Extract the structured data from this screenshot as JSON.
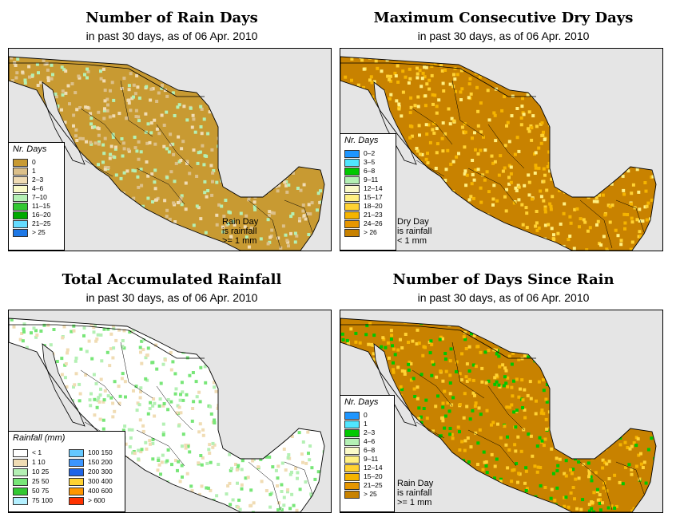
{
  "panels": [
    {
      "title": "Number of Rain Days",
      "subtitle": "in past 30 days, as of  06 Apr. 2010",
      "legend_title": "Nr. Days",
      "legend": [
        {
          "label": "0",
          "color": "#c89a32"
        },
        {
          "label": "1",
          "color": "#dcc08a"
        },
        {
          "label": "2–3",
          "color": "#f0dcb4"
        },
        {
          "label": "4–6",
          "color": "#fafac8"
        },
        {
          "label": "7–10",
          "color": "#b4f0b4"
        },
        {
          "label": "11–15",
          "color": "#32c832"
        },
        {
          "label": "16–20",
          "color": "#00aa00"
        },
        {
          "label": "21–25",
          "color": "#64dcff"
        },
        {
          "label": "> 25",
          "color": "#1e78e6"
        }
      ],
      "note": [
        "Rain Day",
        "is rainfall",
        ">= 1 mm"
      ],
      "land": "#c89a32",
      "spots": [
        "#dcc08a",
        "#f0dcb4",
        "#b4f0b4"
      ]
    },
    {
      "title": "Maximum Consecutive Dry Days",
      "subtitle": "in past 30 days, as of  06 Apr. 2010",
      "legend_title": "Nr. Days",
      "legend": [
        {
          "label": "0–2",
          "color": "#1e96ff"
        },
        {
          "label": "3–5",
          "color": "#50e6ff"
        },
        {
          "label": "6–8",
          "color": "#00c800"
        },
        {
          "label": "9–11",
          "color": "#b4f0b4"
        },
        {
          "label": "12–14",
          "color": "#fafac8"
        },
        {
          "label": "15–17",
          "color": "#fff082"
        },
        {
          "label": "18–20",
          "color": "#ffd232"
        },
        {
          "label": "21–23",
          "color": "#f5b400"
        },
        {
          "label": "24–26",
          "color": "#e69600"
        },
        {
          "label": "> 26",
          "color": "#c88200"
        }
      ],
      "note": [
        "Dry Day",
        "is rainfall",
        "< 1 mm"
      ],
      "land": "#c88200",
      "spots": [
        "#fff082",
        "#ffd232",
        "#f5b400"
      ]
    },
    {
      "title": "Total Accumulated Rainfall",
      "subtitle": "in past 30 days, as of  06 Apr. 2010",
      "legend_title": "Rainfall (mm)",
      "legend_left": [
        {
          "label": "< 1",
          "color": "#ffffff"
        },
        {
          "label": "1   10",
          "color": "#f0dcb4"
        },
        {
          "label": "10   25",
          "color": "#b4f0b4"
        },
        {
          "label": "25   50",
          "color": "#78e678"
        },
        {
          "label": "50   75",
          "color": "#32c832"
        },
        {
          "label": "75   100",
          "color": "#b4f0ff"
        }
      ],
      "legend_right": [
        {
          "label": "100  150",
          "color": "#64c8ff"
        },
        {
          "label": "150  200",
          "color": "#3c96ff"
        },
        {
          "label": "200  300",
          "color": "#1e64e6"
        },
        {
          "label": "300  400",
          "color": "#ffd232"
        },
        {
          "label": "400  600",
          "color": "#ff9600"
        },
        {
          "label": "> 600",
          "color": "#ff3200"
        }
      ],
      "land": "#ffffff",
      "spots": [
        "#f0dcb4",
        "#b4f0b4",
        "#78e678"
      ]
    },
    {
      "title": "Number of Days Since Rain",
      "subtitle": "in past 30 days, as of  06 Apr. 2010",
      "legend_title": "Nr. Days",
      "legend": [
        {
          "label": "0",
          "color": "#1e96ff"
        },
        {
          "label": "1",
          "color": "#50e6ff"
        },
        {
          "label": "2–3",
          "color": "#00c800"
        },
        {
          "label": "4–6",
          "color": "#b4f0b4"
        },
        {
          "label": "6–8",
          "color": "#fafac8"
        },
        {
          "label": "9–11",
          "color": "#fff082"
        },
        {
          "label": "12–14",
          "color": "#ffd232"
        },
        {
          "label": "15–20",
          "color": "#f5b400"
        },
        {
          "label": "21–25",
          "color": "#e69600"
        },
        {
          "label": "> 25",
          "color": "#c88200"
        }
      ],
      "note": [
        "Rain Day",
        "is rainfall",
        ">= 1 mm"
      ],
      "land": "#c88200",
      "spots": [
        "#ffd232",
        "#f5b400",
        "#00c800"
      ]
    }
  ]
}
